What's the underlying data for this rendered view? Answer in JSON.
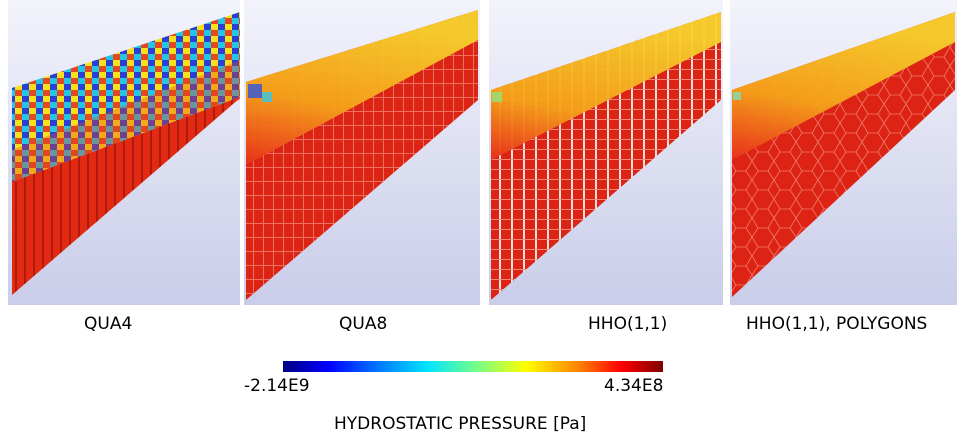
{
  "panels": [
    {
      "label": "QUA4"
    },
    {
      "label": "QUA8"
    },
    {
      "label": "HHO(1,1)"
    },
    {
      "label": "HHO(1,1), POLYGONS"
    }
  ],
  "colorbar": {
    "min_label": "-2.14E9",
    "max_label": "4.34E8",
    "title": "HYDROSTATIC PRESSURE [Pa]",
    "colors": [
      "#00007f",
      "#0000ff",
      "#0080ff",
      "#00e5ff",
      "#7fff7f",
      "#ffff00",
      "#ff8000",
      "#ff0000",
      "#800000"
    ]
  }
}
